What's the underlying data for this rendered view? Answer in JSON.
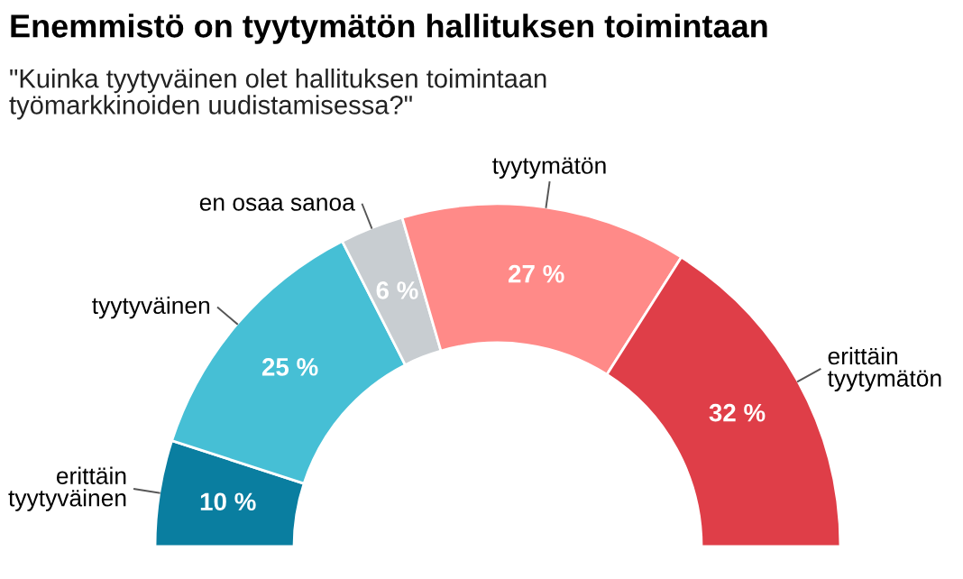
{
  "chart_data": {
    "type": "donut",
    "title": "Enemmistö on tyytymätön hallituksen toimintaan",
    "subtitle": "\"Kuinka tyytyväinen olet hallituksen toimintaan\ntyömarkkinoiden uudistamisessa?\"",
    "categories": [
      "erittäin\ntyytyväinen",
      "tyytyväinen",
      "en osaa sanoa",
      "tyytymätön",
      "erittäin\ntyytymätön"
    ],
    "values": [
      10,
      25,
      6,
      27,
      32
    ],
    "value_labels": [
      "10 %",
      "25 %",
      "6 %",
      "27 %",
      "32 %"
    ],
    "colors": [
      "#0a7ea0",
      "#46bfd5",
      "#c8cdd1",
      "#ff8a88",
      "#df3e48"
    ]
  }
}
